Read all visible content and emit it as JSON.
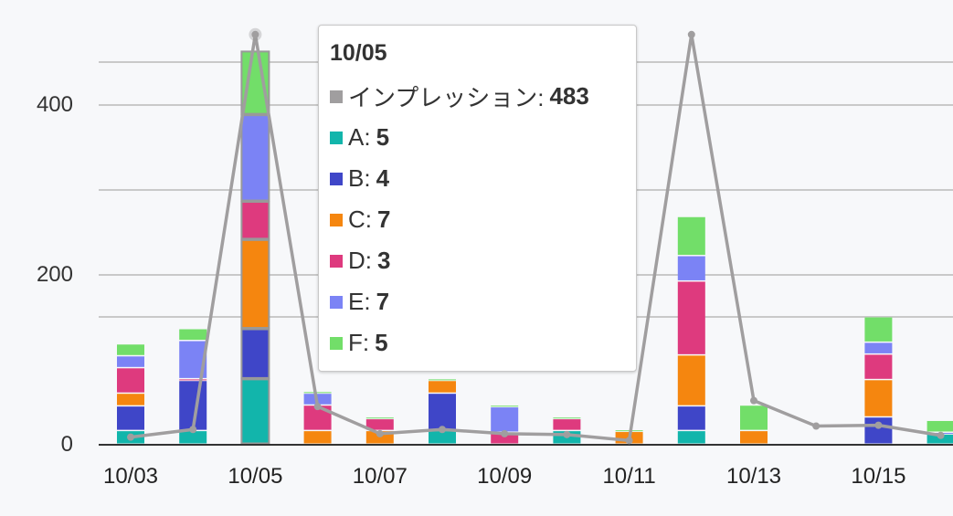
{
  "chart_data": {
    "type": "bar",
    "subtype": "stacked bar + line combo",
    "title": "",
    "xlabel": "",
    "ylabel": "",
    "ylim": [
      0,
      500
    ],
    "yticks": [
      0,
      200,
      400
    ],
    "grid": true,
    "legend_position": "none",
    "categories": [
      "10/03",
      "10/04",
      "10/05",
      "10/06",
      "10/07",
      "10/08",
      "10/09",
      "10/10",
      "10/11",
      "10/12",
      "10/13",
      "10/14",
      "10/15",
      "10/16"
    ],
    "x_tick_labels": [
      "10/03",
      "10/05",
      "10/07",
      "10/09",
      "10/11",
      "10/13",
      "10/15"
    ],
    "series": [
      {
        "name": "A",
        "color": "#12b5ab",
        "type": "bar",
        "values": [
          16,
          16,
          77,
          0,
          0,
          16,
          0,
          16,
          0,
          16,
          0,
          0,
          0,
          12
        ]
      },
      {
        "name": "B",
        "color": "#3f46c8",
        "type": "bar",
        "values": [
          29,
          59,
          59,
          0,
          0,
          44,
          0,
          0,
          0,
          29,
          0,
          0,
          32,
          0
        ]
      },
      {
        "name": "C",
        "color": "#f5860f",
        "type": "bar",
        "values": [
          15,
          0,
          105,
          16,
          16,
          15,
          0,
          0,
          15,
          60,
          16,
          0,
          44,
          0
        ]
      },
      {
        "name": "D",
        "color": "#de3a7e",
        "type": "bar",
        "values": [
          30,
          2,
          45,
          30,
          14,
          0,
          14,
          14,
          0,
          87,
          0,
          0,
          30,
          0
        ]
      },
      {
        "name": "E",
        "color": "#7b83f5",
        "type": "bar",
        "values": [
          14,
          45,
          102,
          14,
          0,
          0,
          30,
          0,
          0,
          30,
          0,
          0,
          14,
          2
        ]
      },
      {
        "name": "F",
        "color": "#72de69",
        "type": "bar",
        "values": [
          14,
          14,
          75,
          2,
          2,
          2,
          2,
          2,
          2,
          46,
          30,
          0,
          30,
          14
        ]
      },
      {
        "name": "インプレッション",
        "color": "#a09e9f",
        "type": "line",
        "values": [
          9,
          18,
          483,
          45,
          13,
          18,
          13,
          12,
          5,
          483,
          52,
          22,
          23,
          11
        ]
      }
    ]
  },
  "y_axis": {
    "labels": [
      "0",
      "200",
      "400"
    ]
  },
  "tooltip": {
    "title": "10/05",
    "rows": [
      {
        "label": "インプレッション:",
        "value": "483",
        "color": "#a09e9f"
      },
      {
        "label": "A:",
        "value": "5",
        "color": "#12b5ab"
      },
      {
        "label": "B:",
        "value": "4",
        "color": "#3f46c8"
      },
      {
        "label": "C:",
        "value": "7",
        "color": "#f5860f"
      },
      {
        "label": "D:",
        "value": "3",
        "color": "#de3a7e"
      },
      {
        "label": "E:",
        "value": "7",
        "color": "#7b83f5"
      },
      {
        "label": "F:",
        "value": "5",
        "color": "#72de69"
      }
    ]
  }
}
